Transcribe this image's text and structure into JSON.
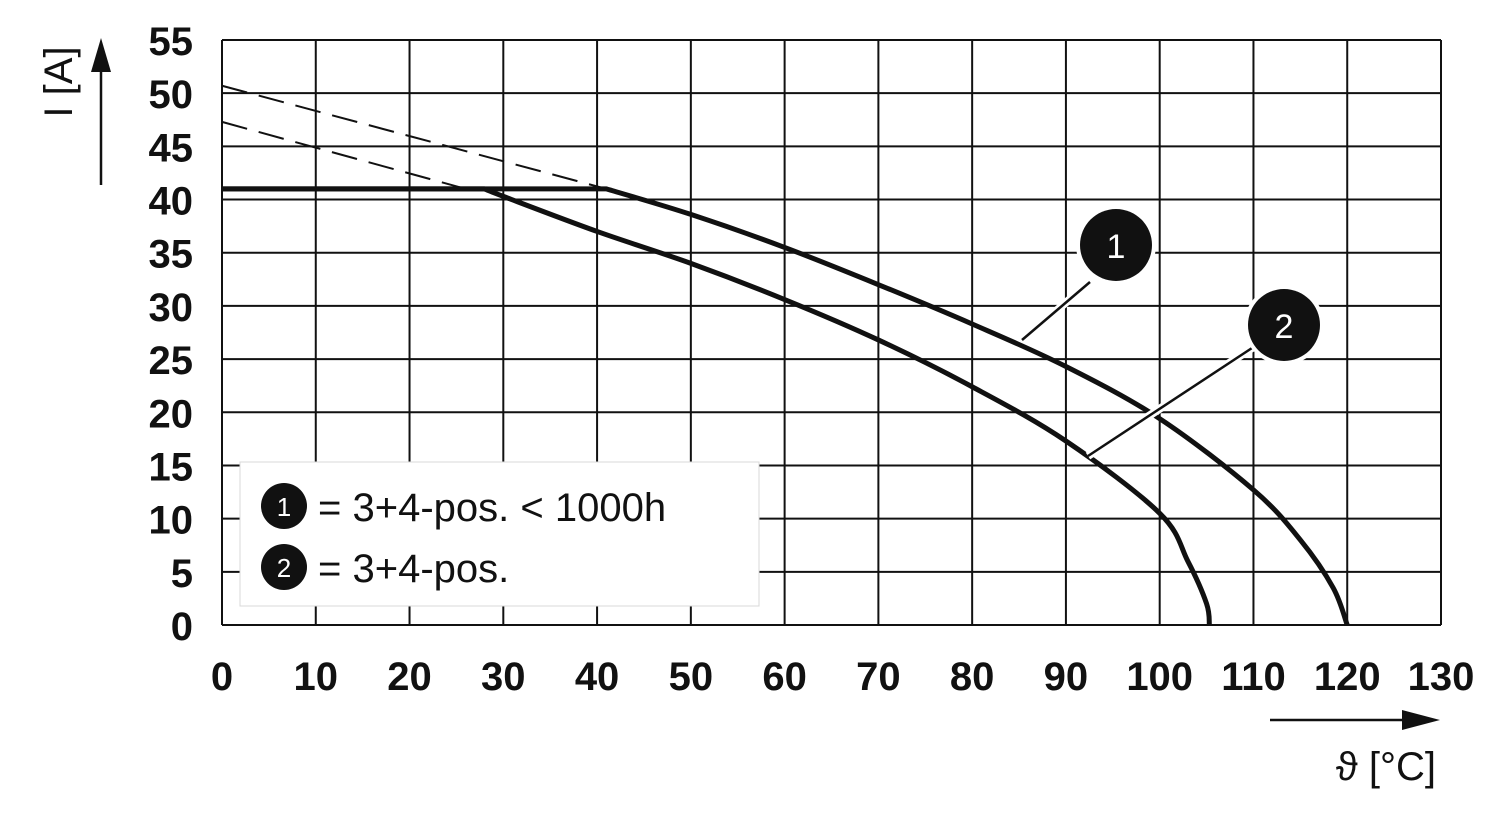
{
  "chart_data": {
    "type": "line",
    "xlabel": "ϑ [°C]",
    "ylabel": "I [A]",
    "xlim": [
      0,
      130
    ],
    "ylim": [
      0,
      55
    ],
    "x_ticks": [
      "0",
      "10",
      "20",
      "30",
      "40",
      "50",
      "60",
      "70",
      "80",
      "90",
      "100",
      "110",
      "120",
      "130"
    ],
    "y_ticks": [
      "0",
      "5",
      "10",
      "15",
      "20",
      "25",
      "30",
      "35",
      "40",
      "45",
      "50",
      "55"
    ],
    "grid": true,
    "legend_position": "bottom-left",
    "series": [
      {
        "name": "3+4-pos. < 1000h",
        "marker": "1",
        "values": [
          {
            "x": 0,
            "y": 41
          },
          {
            "x": 41,
            "y": 41
          },
          {
            "x": 50,
            "y": 38.6
          },
          {
            "x": 60,
            "y": 35.5
          },
          {
            "x": 70,
            "y": 32
          },
          {
            "x": 80,
            "y": 28.3
          },
          {
            "x": 90,
            "y": 24.3
          },
          {
            "x": 100,
            "y": 19.4
          },
          {
            "x": 110,
            "y": 12.7
          },
          {
            "x": 115,
            "y": 8
          },
          {
            "x": 118.5,
            "y": 3.5
          },
          {
            "x": 120,
            "y": 0
          }
        ],
        "dashed_extension": [
          {
            "x": 0,
            "y": 50.7
          },
          {
            "x": 41,
            "y": 41
          }
        ]
      },
      {
        "name": "3+4-pos.",
        "marker": "2",
        "values": [
          {
            "x": 0,
            "y": 41
          },
          {
            "x": 28,
            "y": 41
          },
          {
            "x": 30,
            "y": 40.3
          },
          {
            "x": 40,
            "y": 37
          },
          {
            "x": 50,
            "y": 34
          },
          {
            "x": 60,
            "y": 30.6
          },
          {
            "x": 70,
            "y": 26.8
          },
          {
            "x": 80,
            "y": 22.4
          },
          {
            "x": 90,
            "y": 17.3
          },
          {
            "x": 100,
            "y": 10.5
          },
          {
            "x": 103,
            "y": 6
          },
          {
            "x": 105,
            "y": 2
          },
          {
            "x": 105.3,
            "y": 0
          }
        ],
        "dashed_extension": [
          {
            "x": 0,
            "y": 47.3
          },
          {
            "x": 26,
            "y": 41
          }
        ]
      }
    ]
  },
  "legend": {
    "items": [
      {
        "marker": "1",
        "label": "= 3+4-pos. < 1000h"
      },
      {
        "marker": "2",
        "label": "= 3+4-pos."
      }
    ]
  },
  "markers": {
    "m1": "1",
    "m2": "2"
  },
  "colors": {
    "line": "#111111",
    "grid": "#111111",
    "background": "#ffffff"
  }
}
